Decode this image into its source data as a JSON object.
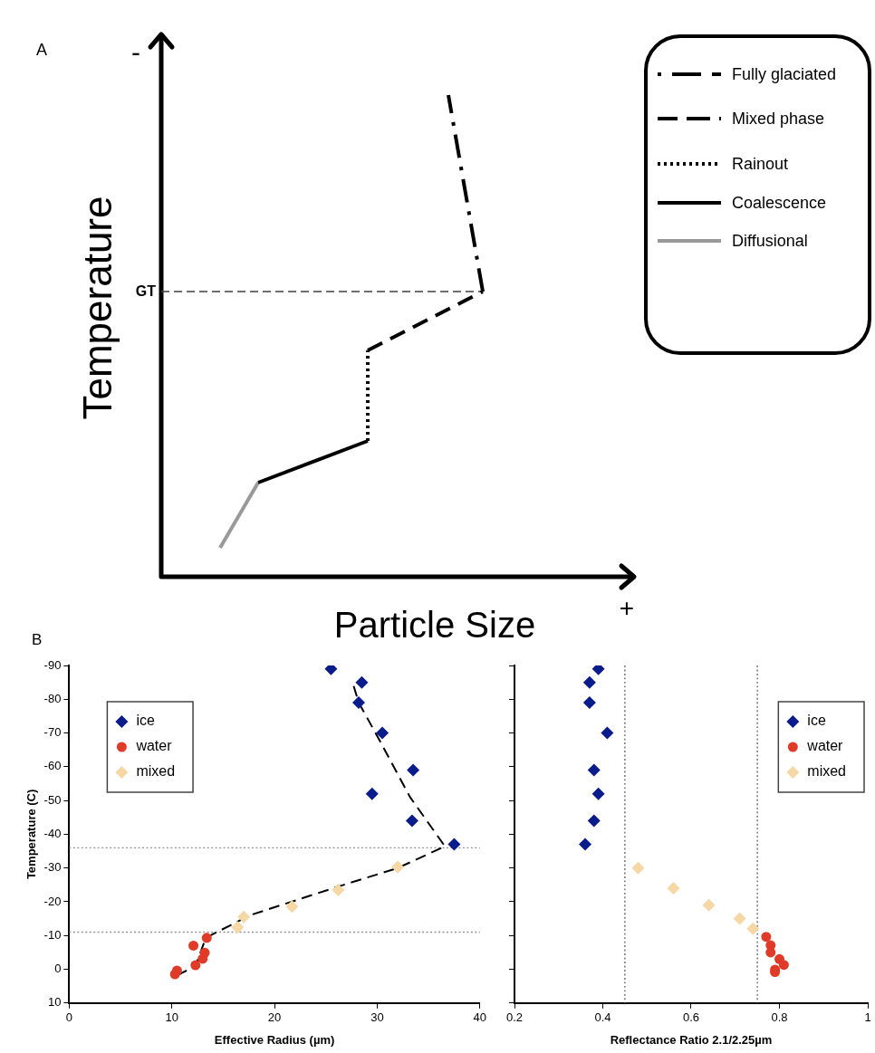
{
  "chart_data": [
    {
      "type": "other",
      "title": "A",
      "xlabel": "Particle Size",
      "ylabel": "Temperature",
      "annotations": [
        "-",
        "+",
        "GT",
        "Fully glaciated",
        "Mixed phase",
        "Rainout",
        "Coalescence",
        "Diffusional"
      ]
    },
    {
      "type": "scatter",
      "title": "B",
      "xlabel": "Effective Radius (µm)",
      "ylabel": "Temperature (C)",
      "xlim": [
        0,
        40
      ],
      "xticks": [
        0,
        10,
        20,
        30,
        40
      ],
      "ylim": [
        10,
        -90
      ],
      "yticks": [
        10,
        0,
        -10,
        -20,
        -30,
        -40,
        -50,
        -60,
        -70,
        -80,
        -90
      ],
      "grid": false,
      "legend": "top left",
      "ref_lines": [
        {
          "axis": "y",
          "value": -36,
          "color": "#909090",
          "line_style": "dotted"
        },
        {
          "axis": "y",
          "value": -11,
          "color": "#909090",
          "line_style": "dotted"
        }
      ],
      "series": [
        {
          "name": "ice",
          "color": "#0a1c8c",
          "marker": "diamond",
          "x": [
            25.5,
            28.5,
            28.2,
            30.5,
            33.5,
            29.5,
            33.4,
            37.5
          ],
          "values": [
            -89,
            -85,
            -79,
            -70,
            -59,
            -52,
            -44,
            -37
          ]
        },
        {
          "name": "water",
          "color": "#e03a28",
          "marker": "circle",
          "x": [
            10.5,
            10.3,
            12.1,
            13.4,
            13.2,
            13.0,
            12.3
          ],
          "values": [
            0.4,
            1.5,
            -7,
            -9.3,
            -4.9,
            -3.1,
            -1.2
          ]
        },
        {
          "name": "mixed",
          "color": "#f6d7a6",
          "marker": "diamond",
          "x": [
            17.0,
            16.4,
            21.7,
            26.2,
            32.0
          ],
          "values": [
            -15.5,
            -12.4,
            -18.6,
            -23.5,
            -30.3
          ]
        },
        {
          "type": "line",
          "color": "#000000",
          "line_style": "dashed",
          "x": [
            10.5,
            12.3,
            13.3,
            17.6,
            26.2,
            32.0,
            36.6,
            33.2,
            30.2,
            28.2,
            27.7
          ],
          "values": [
            1.8,
            -0.9,
            -9.3,
            -16,
            -24.5,
            -30,
            -36.4,
            -51,
            -68,
            -79,
            -84
          ]
        }
      ]
    },
    {
      "type": "scatter",
      "xlabel": "Reflectance Ratio 2.1/2.25µm",
      "xlim": [
        0.2,
        1
      ],
      "xticks": [
        0.2,
        0.4,
        0.6,
        0.8,
        1
      ],
      "ylim": [
        10,
        -90
      ],
      "yticks": [
        10,
        0,
        -10,
        -20,
        -30,
        -40,
        -50,
        -60,
        -70,
        -80,
        -90
      ],
      "tick_labels": "x",
      "grid": false,
      "legend": "top right",
      "ref_lines": [
        {
          "axis": "x",
          "value": 0.45,
          "color": "#606060",
          "line_style": "dotted"
        },
        {
          "axis": "x",
          "value": 0.75,
          "color": "#606060",
          "line_style": "dotted"
        }
      ],
      "series": [
        {
          "name": "ice",
          "color": "#0a1c8c",
          "marker": "diamond",
          "x": [
            0.39,
            0.37,
            0.37,
            0.41,
            0.38,
            0.39,
            0.38,
            0.36
          ],
          "values": [
            -89,
            -85,
            -79,
            -70,
            -59,
            -52,
            -44,
            -37
          ]
        },
        {
          "name": "water",
          "color": "#e03a28",
          "marker": "circle",
          "x": [
            0.77,
            0.78,
            0.78,
            0.8,
            0.81,
            0.79,
            0.79
          ],
          "values": [
            -9.6,
            -7.1,
            -5,
            -3,
            -1.3,
            0.1,
            0.8
          ]
        },
        {
          "name": "mixed",
          "color": "#f6d7a6",
          "marker": "diamond",
          "x": [
            0.48,
            0.56,
            0.64,
            0.71,
            0.74
          ],
          "values": [
            -30,
            -24,
            -19,
            -15,
            -12
          ]
        }
      ]
    }
  ]
}
